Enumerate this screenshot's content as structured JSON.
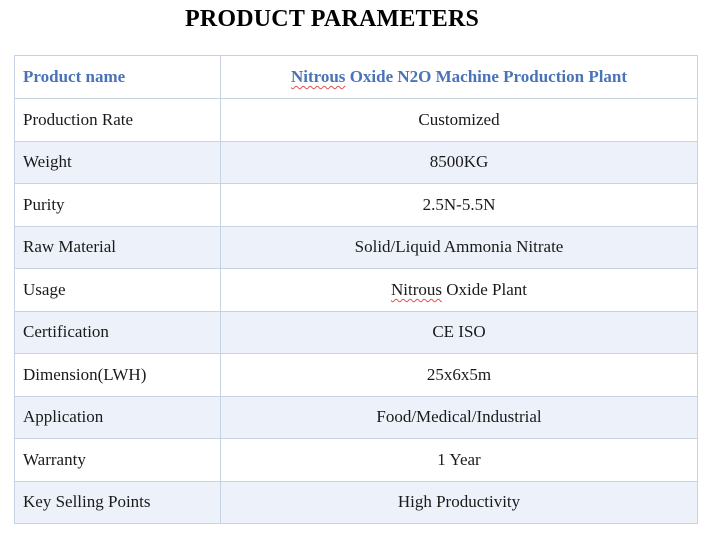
{
  "title": "PRODUCT PARAMETERS",
  "table": {
    "header": {
      "name": "Product name",
      "value_squiggle": "Nitrous",
      "value_rest": " Oxide N2O Machine Production Plant"
    },
    "rows": [
      {
        "name": "Production Rate",
        "value": "Customized"
      },
      {
        "name": "Weight",
        "value": "8500KG"
      },
      {
        "name": "Purity",
        "value": "2.5N-5.5N"
      },
      {
        "name": "Raw Material",
        "value": "Solid/Liquid Ammonia Nitrate"
      },
      {
        "name": "Usage",
        "value_squiggle": "Nitrous",
        "value_rest": " Oxide Plant"
      },
      {
        "name": "Certification",
        "value": "CE ISO"
      },
      {
        "name": "Dimension(LWH)",
        "value": "25x6x5m"
      },
      {
        "name": "Application",
        "value": "Food/Medical/Industrial"
      },
      {
        "name": "Warranty",
        "value": "1 Year"
      },
      {
        "name": "Key Selling Points",
        "value": "High Productivity"
      }
    ]
  },
  "colors": {
    "header_text": "#4a73b8",
    "border": "#c7d3e3",
    "row_stripe": "#edf2fa",
    "spellcheck_underline": "#e05050"
  }
}
